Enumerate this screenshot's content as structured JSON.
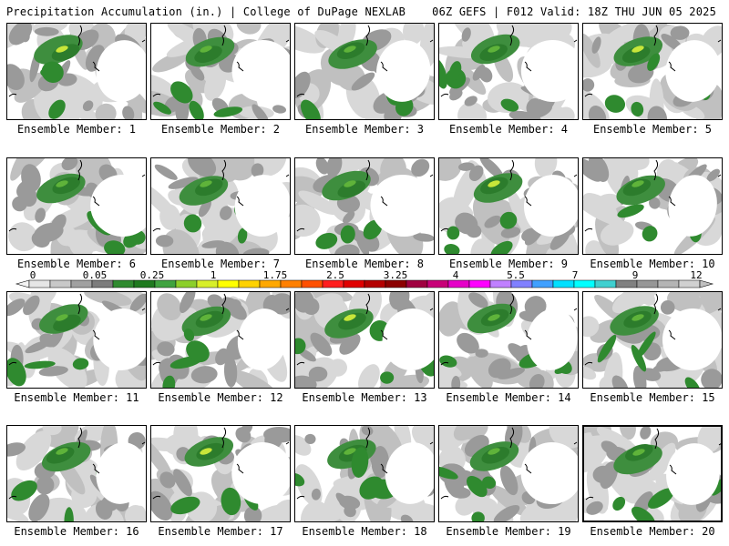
{
  "header": {
    "left": "Precipitation Accumulation (in.) | College of DuPage NEXLAB",
    "right": "06Z GEFS | F012 Valid: 18Z THU JUN 05 2025"
  },
  "members": [
    "Ensemble Member: 1",
    "Ensemble Member: 2",
    "Ensemble Member: 3",
    "Ensemble Member: 4",
    "Ensemble Member: 5",
    "Ensemble Member: 6",
    "Ensemble Member: 7",
    "Ensemble Member: 8",
    "Ensemble Member: 9",
    "Ensemble Member: 10",
    "Ensemble Member: 11",
    "Ensemble Member: 12",
    "Ensemble Member: 13",
    "Ensemble Member: 14",
    "Ensemble Member: 15",
    "Ensemble Member: 16",
    "Ensemble Member: 17",
    "Ensemble Member: 18",
    "Ensemble Member: 19",
    "Ensemble Member: 20"
  ],
  "colorbar": {
    "labels": [
      "0",
      "0.05",
      "0.25",
      "1",
      "1.75",
      "2.5",
      "3.25",
      "4",
      "5.5",
      "7",
      "9",
      "12"
    ],
    "colors": [
      "#e6e6e6",
      "#c8c8c8",
      "#a0a0a0",
      "#7c7c7c",
      "#2f8a2f",
      "#1f7a1f",
      "#3fa33f",
      "#8ccf2a",
      "#d8ef2a",
      "#ffff00",
      "#ffd200",
      "#ffa800",
      "#ff8000",
      "#ff5000",
      "#ff1e1e",
      "#e00000",
      "#b40000",
      "#8c0000",
      "#a00040",
      "#c80078",
      "#e600c8",
      "#ff00ff",
      "#c080ff",
      "#8080ff",
      "#40a0ff",
      "#00e0ff",
      "#00ffff",
      "#40d0d0",
      "#808080",
      "#969696",
      "#b4b4b4",
      "#d0d0d0"
    ]
  }
}
